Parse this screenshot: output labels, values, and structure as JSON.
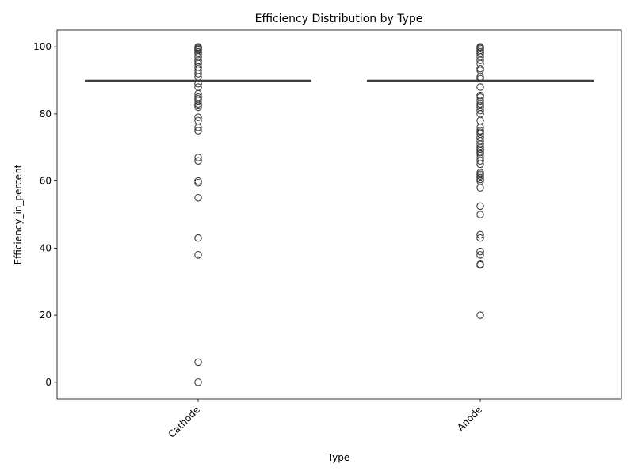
{
  "chart_data": {
    "type": "box",
    "title": "Efficiency Distribution by Type",
    "xlabel": "Type",
    "ylabel": "Efficiency_in_percent",
    "categories": [
      "Cathode",
      "Anode"
    ],
    "ylim": [
      -5,
      105
    ],
    "yticks": [
      0,
      20,
      40,
      60,
      80,
      100
    ],
    "grid": false,
    "colors": {
      "line": "#3d3d3d",
      "box_fill": "#3a75af",
      "outlier": "#3d3d3d"
    },
    "series": [
      {
        "category": "Cathode",
        "q1": 90,
        "median": 90,
        "q3": 90,
        "whisker_low": 90,
        "whisker_high": 90,
        "outliers": [
          100,
          99.8,
          99.5,
          99.2,
          99,
          98.5,
          98,
          97,
          96,
          95.5,
          95,
          94,
          93,
          92,
          91,
          89,
          88,
          86,
          85,
          84.5,
          84,
          83,
          82.5,
          82,
          79,
          78,
          76,
          75,
          67,
          66,
          60,
          59.5,
          55,
          43,
          38,
          6,
          0
        ]
      },
      {
        "category": "Anode",
        "q1": 90,
        "median": 90,
        "q3": 90,
        "whisker_low": 90,
        "whisker_high": 90,
        "outliers": [
          100,
          99.8,
          99.5,
          99,
          98.5,
          98,
          97,
          96,
          95,
          93.5,
          93,
          91,
          90.5,
          88,
          85.5,
          85,
          84,
          83,
          82.5,
          82,
          81,
          80,
          78,
          76,
          75,
          74.5,
          74,
          73,
          72,
          71,
          70,
          69.5,
          69,
          68.5,
          68,
          67,
          66,
          65,
          62.5,
          62,
          61.5,
          61,
          60.5,
          60,
          58,
          52.5,
          50,
          44,
          43,
          39,
          38,
          35.2,
          35,
          20
        ]
      }
    ]
  }
}
